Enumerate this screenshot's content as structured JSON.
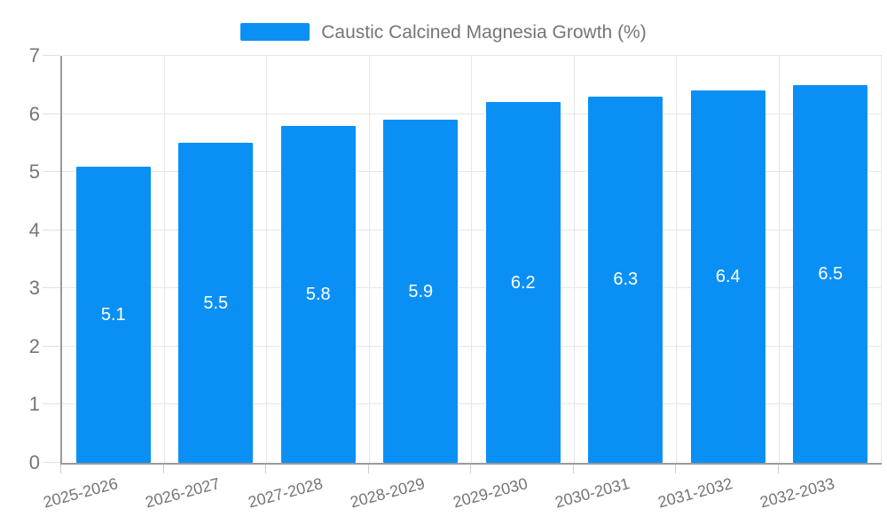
{
  "legend": {
    "label": "Caustic Calcined Magnesia Growth (%)"
  },
  "chart_data": {
    "type": "bar",
    "title": "Caustic Calcined Magnesia Growth (%)",
    "categories": [
      "2025-2026",
      "2026-2027",
      "2027-2028",
      "2028-2029",
      "2029-2030",
      "2030-2031",
      "2031-2032",
      "2032-2033"
    ],
    "values": [
      5.1,
      5.5,
      5.8,
      5.9,
      6.2,
      6.3,
      6.4,
      6.5
    ],
    "value_labels": [
      "5.1",
      "5.5",
      "5.8",
      "5.9",
      "6.2",
      "6.3",
      "6.4",
      "6.5"
    ],
    "xlabel": "",
    "ylabel": "",
    "ylim": [
      0,
      7
    ],
    "yticks": [
      "0",
      "1",
      "2",
      "3",
      "4",
      "5",
      "6",
      "7"
    ],
    "grid": true,
    "legend_position": "top",
    "colors": {
      "bar": "#0a90f5",
      "value_label": "#ffffff",
      "axis_text": "#757575",
      "axis_line": "#9a9a9a",
      "gridline": "#e6e6e6"
    }
  }
}
